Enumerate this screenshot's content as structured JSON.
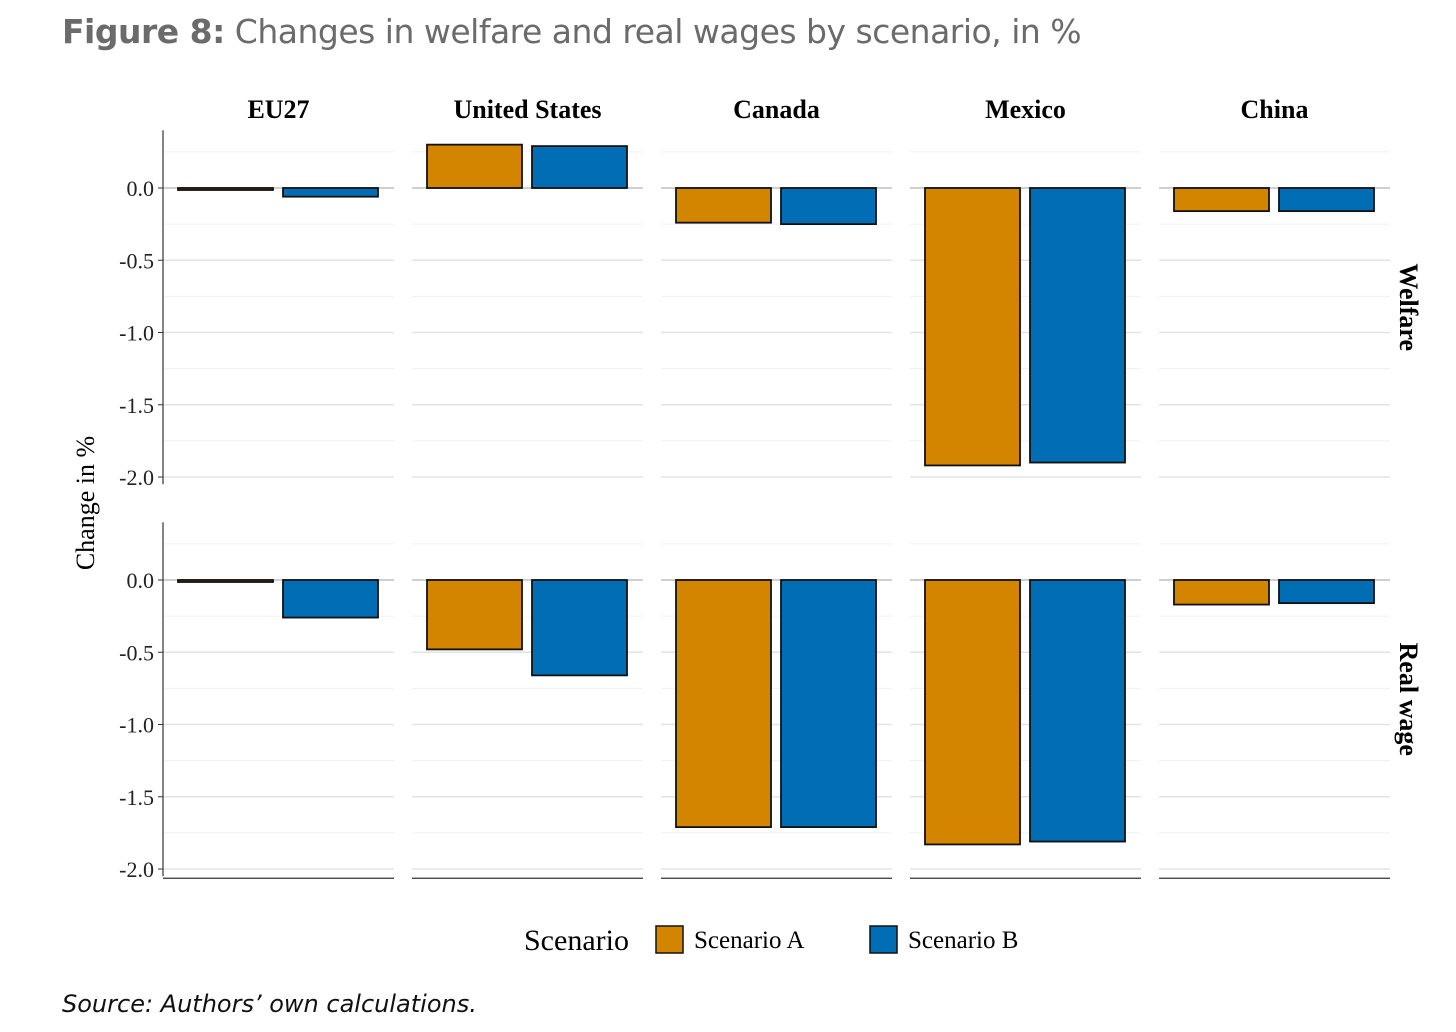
{
  "title_bold": "Figure 8:",
  "title_rest": " Changes in welfare and real wages by scenario, in %",
  "source": "Source: Authors’ own calculations.",
  "chart_data": {
    "type": "bar",
    "ylabel": "Change in %",
    "categories": [
      "EU27",
      "United States",
      "Canada",
      "Mexico",
      "China"
    ],
    "facets": [
      {
        "name": "Welfare",
        "series": [
          {
            "name": "Scenario A",
            "values": [
              -0.01,
              0.3,
              -0.24,
              -1.92,
              -0.16
            ]
          },
          {
            "name": "Scenario B",
            "values": [
              -0.06,
              0.29,
              -0.25,
              -1.9,
              -0.16
            ]
          }
        ]
      },
      {
        "name": "Real wage",
        "series": [
          {
            "name": "Scenario A",
            "values": [
              -0.01,
              -0.48,
              -1.71,
              -1.83,
              -0.17
            ]
          },
          {
            "name": "Scenario B",
            "values": [
              -0.26,
              -0.66,
              -1.71,
              -1.81,
              -0.16
            ]
          }
        ]
      }
    ],
    "yticks": [
      "0.0",
      "-0.5",
      "-1.0",
      "-1.5",
      "-2.0"
    ],
    "ytick_values": [
      0,
      -0.5,
      -1.0,
      -1.5,
      -2.0
    ],
    "ylim": [
      -2.05,
      0.4
    ],
    "grid": true,
    "legend": {
      "title": "Scenario",
      "position": "bottom",
      "entries": [
        "Scenario A",
        "Scenario B"
      ]
    },
    "colors": {
      "Scenario A": "#D38500",
      "Scenario B": "#006DB5"
    }
  }
}
